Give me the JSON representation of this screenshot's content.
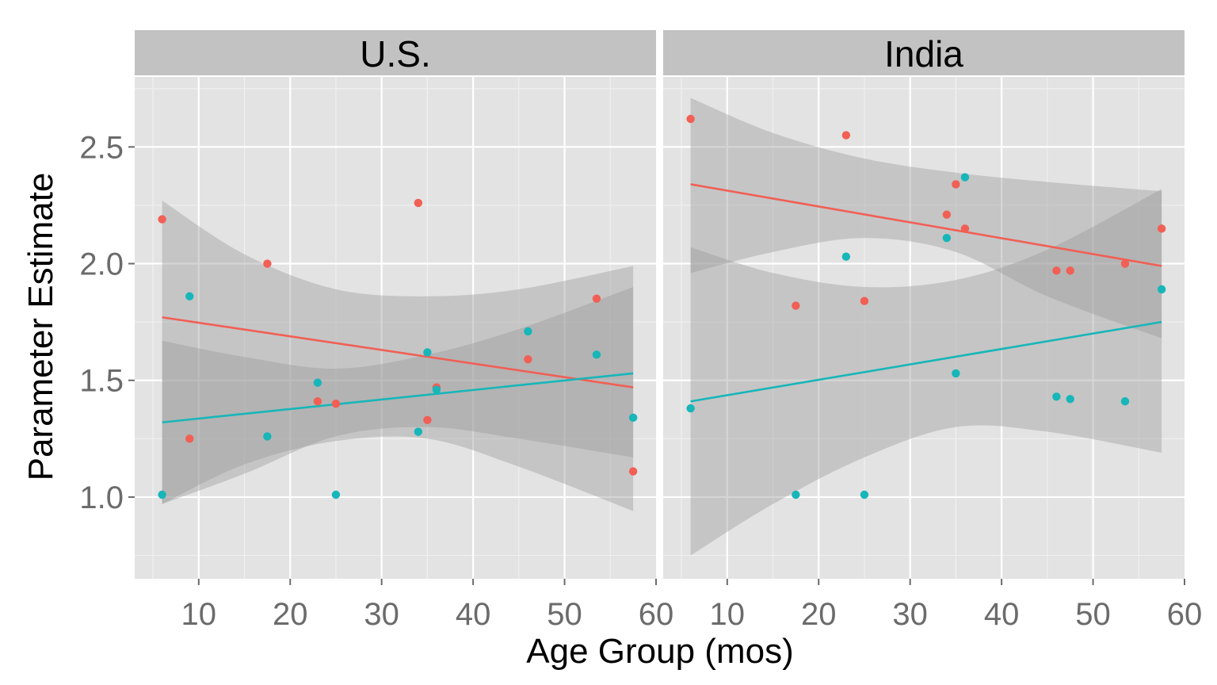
{
  "chart_data": {
    "type": "scatter",
    "xlabel": "Age Group (mos)",
    "ylabel": "Parameter Estimate",
    "xlim": [
      3,
      60
    ],
    "ylim": [
      0.65,
      2.8
    ],
    "x_ticks": [
      10,
      20,
      30,
      40,
      50,
      60
    ],
    "y_ticks": [
      1.0,
      1.5,
      2.0,
      2.5
    ],
    "y_tick_labels": [
      "1.0",
      "1.5",
      "2.0",
      "2.5"
    ],
    "grid": true,
    "colors": {
      "red": "#f15f55",
      "teal": "#17b6b9",
      "panel_bg": "#e3e3e3",
      "strip_bg": "#c2c2c2",
      "ribbon": "#9a9a9a"
    },
    "facets": [
      {
        "label": "U.S.",
        "series": [
          {
            "color": "red",
            "points": [
              [
                6,
                2.19
              ],
              [
                9,
                1.25
              ],
              [
                17.5,
                2.0
              ],
              [
                23,
                1.41
              ],
              [
                25,
                1.4
              ],
              [
                34,
                2.26
              ],
              [
                35,
                1.33
              ],
              [
                36,
                1.47
              ],
              [
                46,
                1.59
              ],
              [
                53.5,
                1.85
              ],
              [
                57.5,
                1.11
              ]
            ],
            "fit": {
              "x": [
                6,
                57.5
              ],
              "y": [
                1.77,
                1.47
              ]
            },
            "band": {
              "x": [
                6,
                15,
                25,
                35,
                45,
                57.5
              ],
              "upper": [
                2.27,
                2.04,
                1.89,
                1.86,
                1.89,
                1.99
              ],
              "lower": [
                0.97,
                1.14,
                1.24,
                1.25,
                1.13,
                0.94
              ]
            }
          },
          {
            "color": "teal",
            "points": [
              [
                6,
                1.01
              ],
              [
                9,
                1.86
              ],
              [
                17.5,
                1.26
              ],
              [
                23,
                1.49
              ],
              [
                25,
                1.01
              ],
              [
                34,
                1.28
              ],
              [
                35,
                1.62
              ],
              [
                36,
                1.46
              ],
              [
                46,
                1.71
              ],
              [
                53.5,
                1.61
              ],
              [
                57.5,
                1.34
              ]
            ],
            "fit": {
              "x": [
                6,
                57.5
              ],
              "y": [
                1.32,
                1.53
              ]
            },
            "band": {
              "x": [
                6,
                15,
                25,
                35,
                45,
                57.5
              ],
              "upper": [
                1.67,
                1.6,
                1.55,
                1.61,
                1.72,
                1.9
              ],
              "lower": [
                0.97,
                1.1,
                1.26,
                1.3,
                1.25,
                1.17
              ]
            }
          }
        ]
      },
      {
        "label": "India",
        "series": [
          {
            "color": "red",
            "points": [
              [
                6,
                2.62
              ],
              [
                17.5,
                1.82
              ],
              [
                23,
                2.55
              ],
              [
                25,
                1.84
              ],
              [
                34,
                2.21
              ],
              [
                35,
                2.34
              ],
              [
                36,
                2.15
              ],
              [
                46,
                1.97
              ],
              [
                47.5,
                1.97
              ],
              [
                53.5,
                2.0
              ],
              [
                57.5,
                2.15
              ]
            ],
            "fit": {
              "x": [
                6,
                57.5
              ],
              "y": [
                2.34,
                1.99
              ]
            },
            "band": {
              "x": [
                6,
                15,
                25,
                35,
                45,
                57.5
              ],
              "upper": [
                2.71,
                2.56,
                2.45,
                2.39,
                2.35,
                2.31
              ],
              "lower": [
                1.96,
                2.05,
                2.11,
                2.05,
                1.86,
                1.68
              ]
            }
          },
          {
            "color": "teal",
            "points": [
              [
                6,
                1.38
              ],
              [
                17.5,
                1.01
              ],
              [
                23,
                2.03
              ],
              [
                25,
                1.01
              ],
              [
                34,
                2.11
              ],
              [
                35,
                1.53
              ],
              [
                36,
                2.37
              ],
              [
                46,
                1.43
              ],
              [
                47.5,
                1.42
              ],
              [
                53.5,
                1.41
              ],
              [
                57.5,
                1.89
              ]
            ],
            "fit": {
              "x": [
                6,
                57.5
              ],
              "y": [
                1.41,
                1.75
              ]
            },
            "band": {
              "x": [
                6,
                15,
                25,
                35,
                45,
                57.5
              ],
              "upper": [
                2.07,
                1.96,
                1.9,
                1.93,
                2.06,
                2.32
              ],
              "lower": [
                0.75,
                0.97,
                1.17,
                1.3,
                1.28,
                1.19
              ]
            }
          }
        ]
      }
    ]
  }
}
